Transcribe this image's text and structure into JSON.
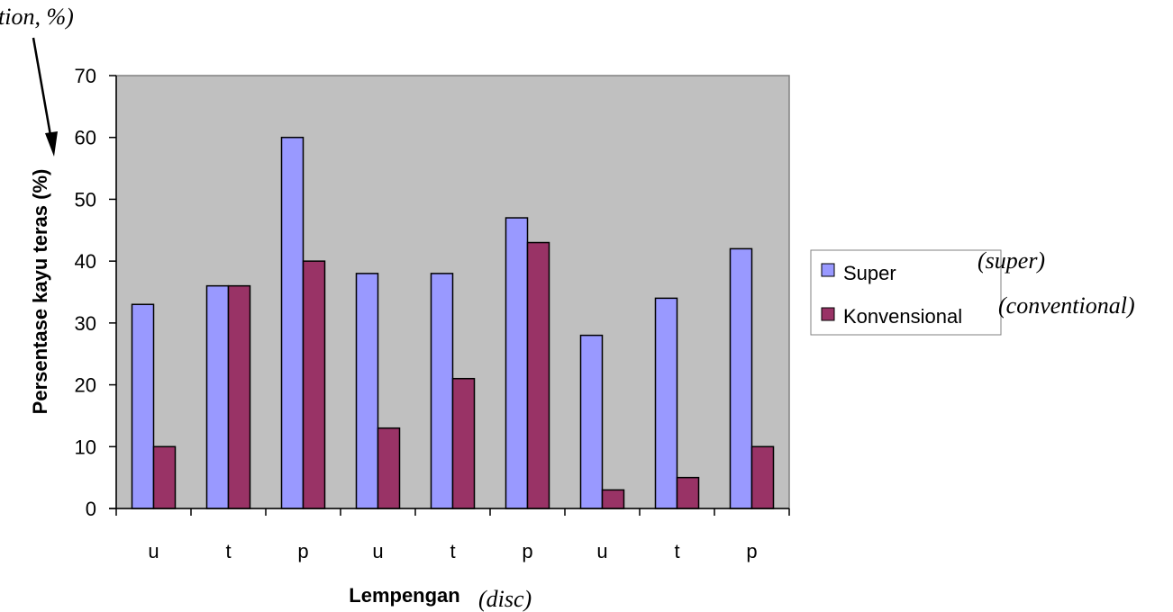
{
  "chart_data": {
    "type": "bar",
    "categories": [
      "u",
      "t",
      "p",
      "u",
      "t",
      "p",
      "u",
      "t",
      "p"
    ],
    "series": [
      {
        "name": "Super",
        "color": "#9999ff",
        "values": [
          33,
          36,
          60,
          38,
          38,
          47,
          28,
          34,
          42
        ]
      },
      {
        "name": "Konvensional",
        "color": "#993366",
        "values": [
          10,
          36,
          40,
          13,
          21,
          43,
          3,
          5,
          10
        ]
      }
    ],
    "ylim": [
      0,
      70
    ],
    "yticks": [
      0,
      10,
      20,
      30,
      40,
      50,
      60,
      70
    ],
    "xlabel": "Lempengan",
    "xlabel_note": "(disc)",
    "ylabel": "Persentase kayu teras (%)",
    "ylabel_note": "tion, %)",
    "legend_notes": [
      "(super)",
      "(conventional)"
    ],
    "legend_position": "right",
    "plot_background": "#c0c0c0",
    "grid": false
  }
}
